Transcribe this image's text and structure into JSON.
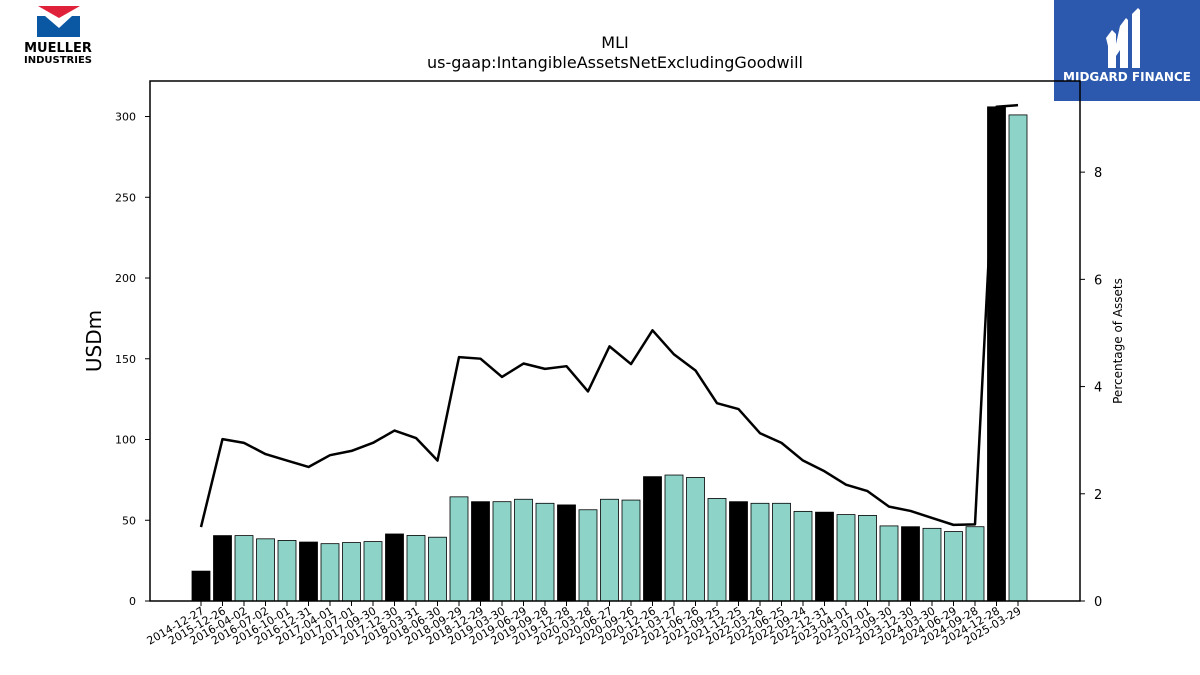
{
  "logos": {
    "left": {
      "line1": "MUELLER",
      "line2": "INDUSTRIES",
      "red": "#e0213a",
      "blue": "#0a57a4"
    },
    "right": {
      "text": "MIDGARD FINANCE",
      "bg": "#2c59ad"
    }
  },
  "chart_data": {
    "type": "bar",
    "title": "MLI",
    "subtitle": "us-gaap:IntangibleAssetsNetExcludingGoodwill",
    "ylabel": "USDm",
    "y2label": "Percentage of Assets",
    "ylim": [
      0,
      322
    ],
    "y2lim": [
      0,
      9.7
    ],
    "yticks": [
      0,
      50,
      100,
      150,
      200,
      250,
      300
    ],
    "y2ticks": [
      0,
      2,
      4,
      6,
      8
    ],
    "colors": {
      "bar": "#8dd3c7",
      "bar_highlight": "#000000",
      "line": "#000000"
    },
    "categories": [
      "2014-12-27",
      "2015-12-26",
      "2016-04-02",
      "2016-07-02",
      "2016-10-01",
      "2016-12-31",
      "2017-04-01",
      "2017-07-01",
      "2017-09-30",
      "2017-12-30",
      "2018-03-31",
      "2018-06-30",
      "2018-09-29",
      "2018-12-29",
      "2019-03-30",
      "2019-06-29",
      "2019-09-28",
      "2019-12-28",
      "2020-03-28",
      "2020-06-27",
      "2020-09-26",
      "2020-12-26",
      "2021-03-27",
      "2021-06-26",
      "2021-09-25",
      "2021-12-25",
      "2022-03-26",
      "2022-06-25",
      "2022-09-24",
      "2022-12-31",
      "2023-04-01",
      "2023-07-01",
      "2023-09-30",
      "2023-12-30",
      "2024-03-30",
      "2024-06-29",
      "2024-09-28",
      "2024-12-28",
      "2025-03-29"
    ],
    "series": [
      {
        "type": "bar",
        "values": [
          18.5,
          40.5,
          40.5,
          38.5,
          37.5,
          36.5,
          35.5,
          36.2,
          36.8,
          41.5,
          40.6,
          39.5,
          64.5,
          61.5,
          61.5,
          63,
          60.5,
          59.5,
          56.5,
          63,
          62.5,
          77,
          78,
          76.5,
          63.5,
          61.5,
          60.5,
          60.5,
          55.5,
          55,
          53.5,
          53,
          46.5,
          46,
          45,
          43,
          46,
          306,
          301
        ],
        "highlight": [
          true,
          true,
          false,
          false,
          false,
          true,
          false,
          false,
          false,
          true,
          false,
          false,
          false,
          true,
          false,
          false,
          false,
          true,
          false,
          false,
          false,
          true,
          false,
          false,
          false,
          true,
          false,
          false,
          false,
          true,
          false,
          false,
          false,
          true,
          false,
          false,
          false,
          true,
          false
        ]
      },
      {
        "type": "line",
        "axis": "right",
        "values": [
          1.38,
          3.02,
          2.95,
          2.74,
          2.62,
          2.5,
          2.72,
          2.8,
          2.95,
          3.18,
          3.04,
          2.62,
          4.55,
          4.52,
          4.18,
          4.43,
          4.33,
          4.38,
          3.91,
          4.75,
          4.42,
          5.05,
          4.6,
          4.3,
          3.69,
          3.58,
          3.13,
          2.95,
          2.62,
          2.42,
          2.17,
          2.05,
          1.76,
          1.68,
          1.55,
          1.42,
          1.43,
          9.22,
          9.25
        ]
      }
    ]
  }
}
